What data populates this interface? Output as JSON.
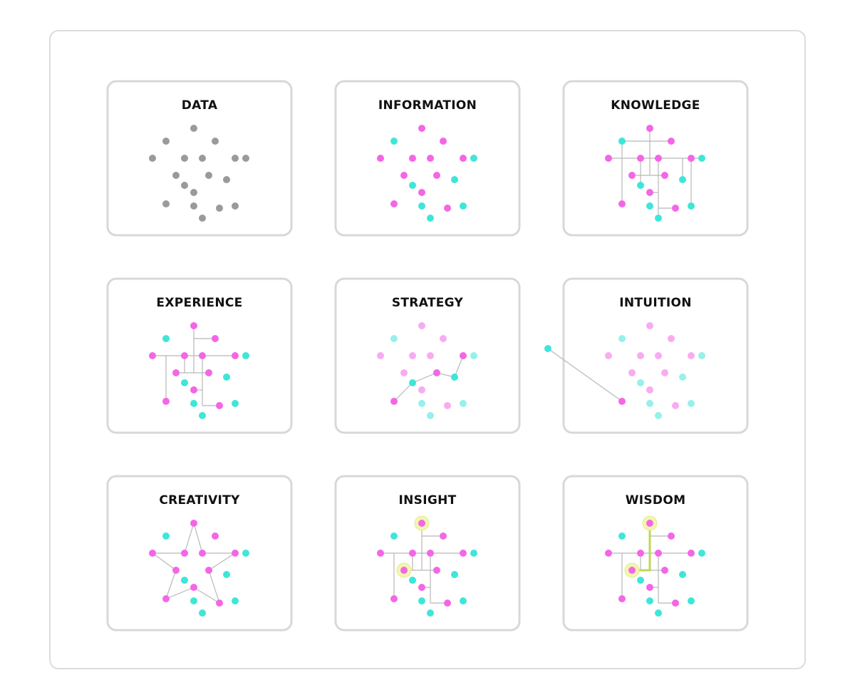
{
  "panels": [
    {
      "title": "DATA"
    },
    {
      "title": "INFORMATION"
    },
    {
      "title": "KNOWLEDGE"
    },
    {
      "title": "EXPERIENCE"
    },
    {
      "title": "STRATEGY"
    },
    {
      "title": "INTUITION"
    },
    {
      "title": "CREATIVITY"
    },
    {
      "title": "INSIGHT"
    },
    {
      "title": "WISDOM"
    }
  ]
}
